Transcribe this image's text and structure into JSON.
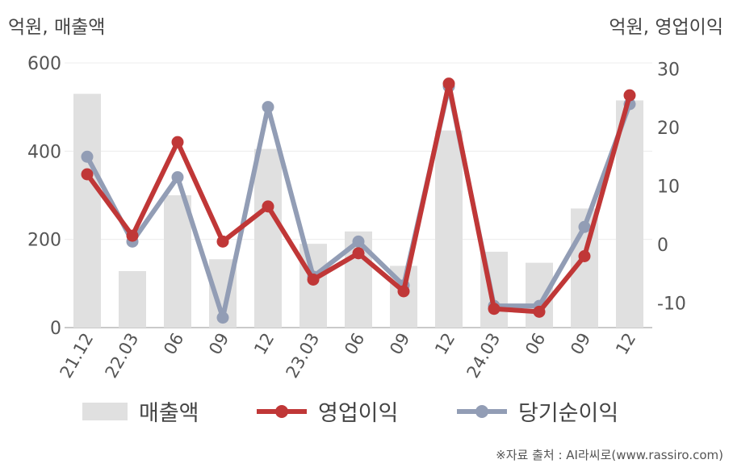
{
  "units": {
    "left": "억원, 매출액",
    "right": "억원, 영업이익"
  },
  "source": "※자료 출처 : AI라씨로(www.rassiro.com)",
  "chart_data": {
    "type": "bar+line",
    "categories": [
      "21.12",
      "22.03",
      "06",
      "09",
      "12",
      "23.03",
      "06",
      "09",
      "12",
      "24.03",
      "06",
      "09",
      "12"
    ],
    "y_left": {
      "min": 0,
      "max": 600,
      "ticks": [
        0,
        200,
        400,
        600
      ]
    },
    "y_right": {
      "min": -15,
      "max": 30,
      "ticks": [
        -10,
        0,
        10,
        20,
        30
      ]
    },
    "series": [
      {
        "name": "매출액",
        "type": "bar",
        "axis": "left",
        "color": "#e0e0e0",
        "values": [
          530,
          128,
          300,
          155,
          405,
          190,
          218,
          140,
          447,
          172,
          147,
          270,
          515
        ]
      },
      {
        "name": "영업이익",
        "type": "line",
        "axis": "right",
        "color": "#c03737",
        "values": [
          12.0,
          1.5,
          17.5,
          0.5,
          6.5,
          -6.0,
          -1.5,
          -8.0,
          27.5,
          -11.0,
          -11.5,
          -2.0,
          25.5
        ]
      },
      {
        "name": "당기순이익",
        "type": "line",
        "axis": "right",
        "color": "#929db5",
        "values": [
          15.0,
          0.5,
          11.5,
          -12.5,
          23.5,
          -5.5,
          0.5,
          -7.0,
          27.0,
          -10.5,
          -10.5,
          3.0,
          24.0
        ]
      }
    ],
    "grid": true,
    "legend_position": "bottom"
  }
}
